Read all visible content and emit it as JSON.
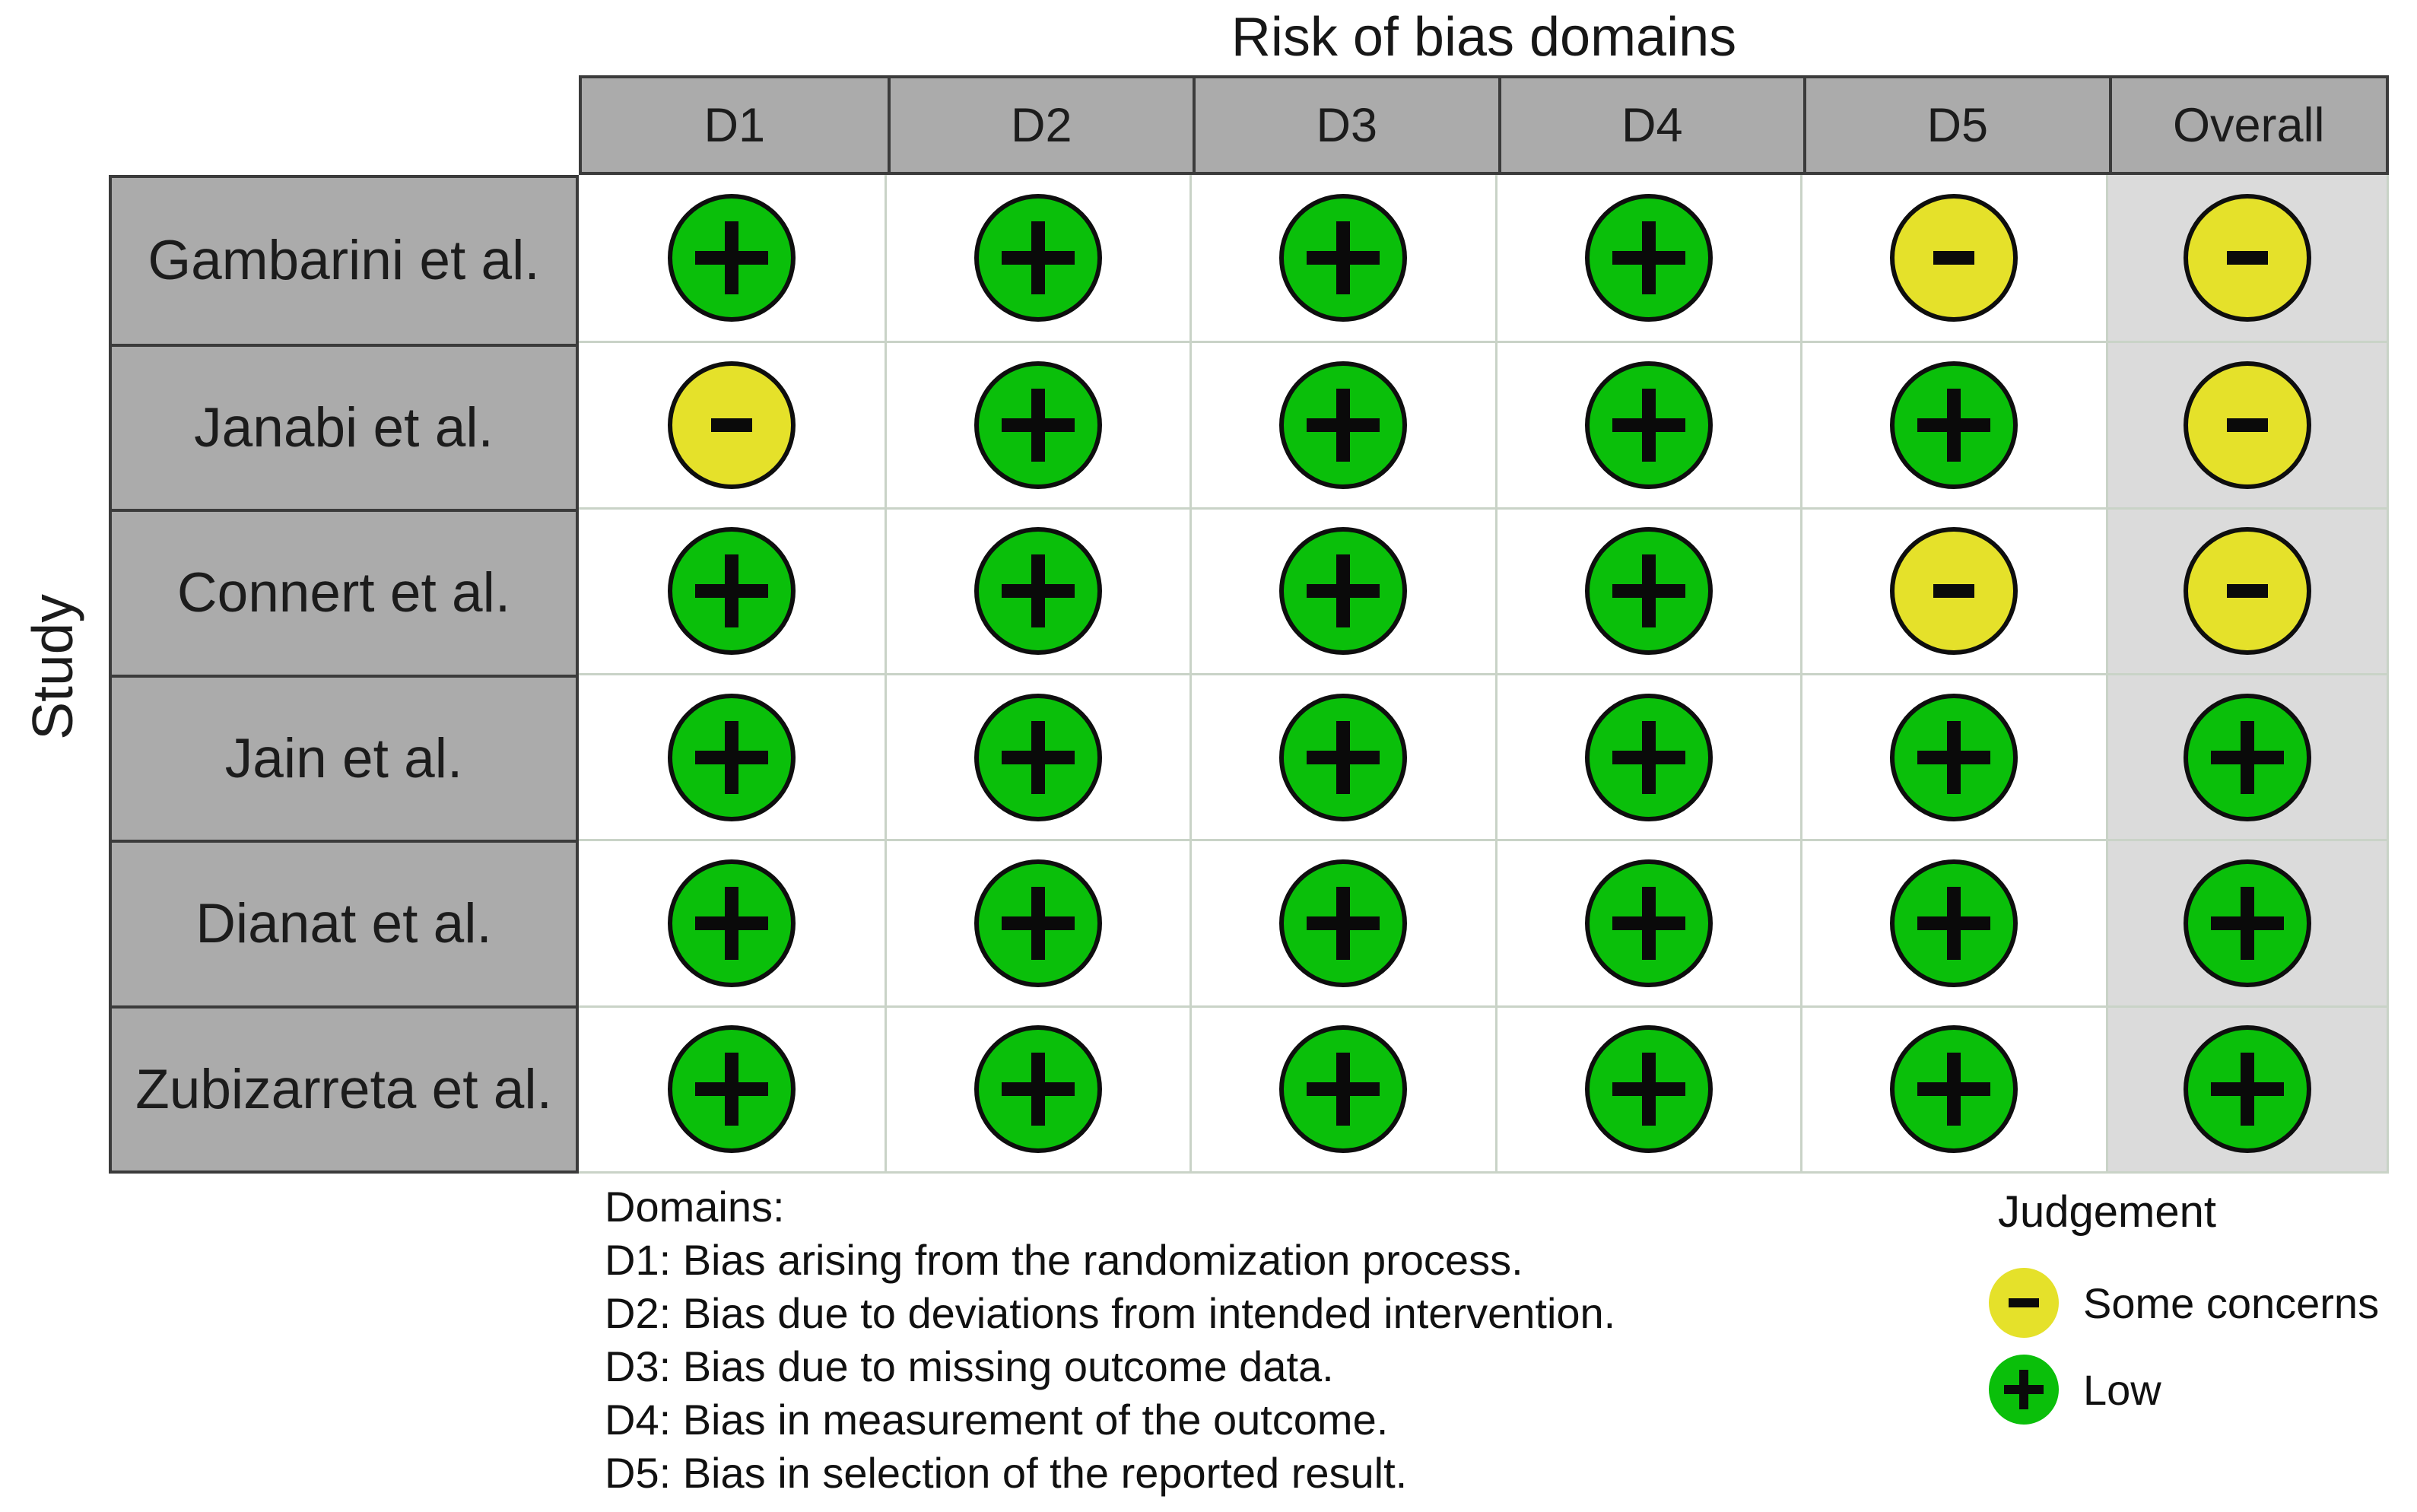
{
  "chart_data": {
    "type": "heatmap",
    "title": "Risk of bias domains",
    "columns": [
      "D1",
      "D2",
      "D3",
      "D4",
      "D5",
      "Overall"
    ],
    "rows": [
      "Gambarini et al.",
      "Janabi et al.",
      "Connert et al.",
      "Jain et al.",
      "Dianat et al.",
      "Zubizarreta et al."
    ],
    "row_axis_label": "Study",
    "values": [
      [
        "low",
        "low",
        "low",
        "low",
        "some",
        "some"
      ],
      [
        "some",
        "low",
        "low",
        "low",
        "low",
        "some"
      ],
      [
        "low",
        "low",
        "low",
        "low",
        "some",
        "some"
      ],
      [
        "low",
        "low",
        "low",
        "low",
        "low",
        "low"
      ],
      [
        "low",
        "low",
        "low",
        "low",
        "low",
        "low"
      ],
      [
        "low",
        "low",
        "low",
        "low",
        "low",
        "low"
      ]
    ],
    "judgement_labels": {
      "low": "Low",
      "some": "Some concerns"
    },
    "judgement_symbols": {
      "low": "+",
      "some": "-"
    },
    "legend_position": "bottom-right",
    "grid": true
  },
  "domains_note": {
    "heading": "Domains:",
    "items": [
      "D1: Bias arising from the randomization process.",
      "D2: Bias due to deviations from intended intervention.",
      "D3: Bias due to missing outcome data.",
      "D4: Bias in measurement of the outcome.",
      "D5: Bias in selection of the reported result."
    ]
  },
  "judgement_legend": {
    "heading": "Judgement",
    "items": [
      {
        "judgement": "some",
        "label": "Some concerns"
      },
      {
        "judgement": "low",
        "label": "Low"
      }
    ]
  },
  "colors": {
    "low": "#0ABF0A",
    "some": "#E5E12A",
    "header_bg": "#ABABAB",
    "overall_bg": "#DBDBDB",
    "dark_border": "#3B3B3B",
    "light_border": "#C9D3C7",
    "symbol": "#0A0A0A"
  }
}
